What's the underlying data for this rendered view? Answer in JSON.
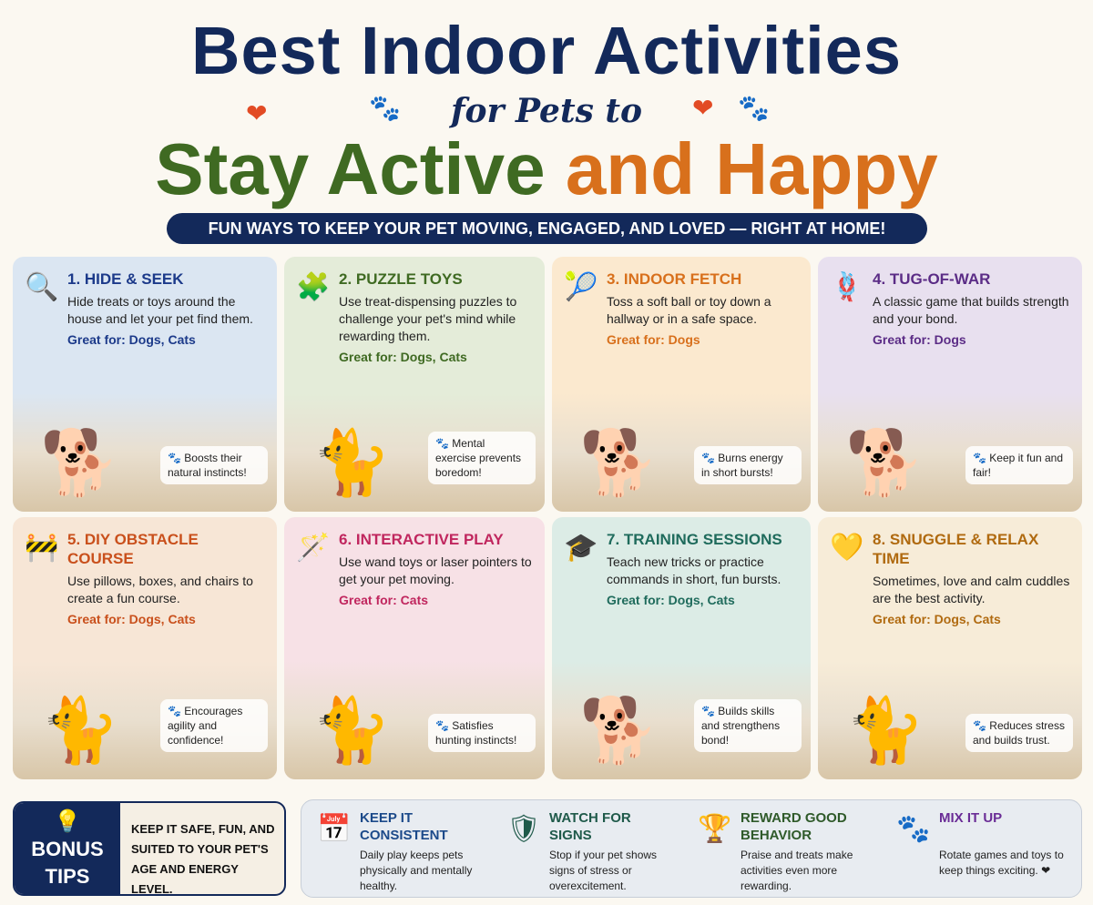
{
  "header": {
    "title_line1": "Best Indoor Activities",
    "title_line2": "for Pets to",
    "title_green": "Stay Active",
    "title_orange": "and Happy",
    "banner": "FUN WAYS TO KEEP YOUR PET MOVING, ENGAGED, AND LOVED — RIGHT AT HOME!"
  },
  "colors": {
    "navy": "#13295a",
    "green": "#3f6a22",
    "orange": "#d8701c"
  },
  "cards": [
    {
      "title": "1. HIDE & SEEK",
      "icon": "magnifier-icon",
      "glyph": "🔍",
      "desc": "Hide treats or toys around the house and let your pet find them.",
      "great_for": "Great for: Dogs, Cats",
      "callout": "🐾 Boosts their natural instincts!",
      "color": "#1c3a8a",
      "bg": "#dbe6f2",
      "pet": "🐕"
    },
    {
      "title": "2. PUZZLE TOYS",
      "icon": "puzzle-icon",
      "glyph": "🧩",
      "desc": "Use treat-dispensing puzzles to challenge your pet's mind while rewarding them.",
      "great_for": "Great for: Dogs, Cats",
      "callout": "🐾 Mental exercise prevents boredom!",
      "color": "#3f6a22",
      "bg": "#e4ecd9",
      "pet": "🐈"
    },
    {
      "title": "3. INDOOR FETCH",
      "icon": "ball-icon",
      "glyph": "🎾",
      "desc": "Toss a soft ball or toy down a hallway or in a safe space.",
      "great_for": "Great for: Dogs",
      "callout": "🐾 Burns energy in short bursts!",
      "color": "#d8701c",
      "bg": "#fbe9cf",
      "pet": "🐕"
    },
    {
      "title": "4. TUG-OF-WAR",
      "icon": "rope-icon",
      "glyph": "🪢",
      "desc": "A classic game that builds strength and your bond.",
      "great_for": "Great for: Dogs",
      "callout": "🐾 Keep it fun and fair!",
      "color": "#5b2c86",
      "bg": "#e8e0ef",
      "pet": "🐕"
    },
    {
      "title": "5. DIY OBSTACLE COURSE",
      "icon": "cone-icon",
      "glyph": "🚧",
      "desc": "Use pillows, boxes, and chairs to create a fun course.",
      "great_for": "Great for: Dogs, Cats",
      "callout": "🐾 Encourages agility and confidence!",
      "color": "#c9501c",
      "bg": "#f7e6d6",
      "pet": "🐈"
    },
    {
      "title": "6. INTERACTIVE PLAY",
      "icon": "wand-icon",
      "glyph": "🪄",
      "desc": "Use wand toys or laser pointers to get your pet moving.",
      "great_for": "Great for: Cats",
      "callout": "🐾 Satisfies hunting instincts!",
      "color": "#c0265e",
      "bg": "#f7e1e6",
      "pet": "🐈"
    },
    {
      "title": "7. TRAINING SESSIONS",
      "icon": "graduation-cap-icon",
      "glyph": "🎓",
      "desc": "Teach new tricks or practice commands in short, fun bursts.",
      "great_for": "Great for: Dogs, Cats",
      "callout": "🐾 Builds skills and strengthens bond!",
      "color": "#1f6b5c",
      "bg": "#dcece6",
      "pet": "🐕"
    },
    {
      "title": "8. SNUGGLE & RELAX TIME",
      "icon": "heart-icon",
      "glyph": "💛",
      "desc": "Sometimes, love and calm cuddles are the best activity.",
      "great_for": "Great for: Dogs, Cats",
      "callout": "🐾 Reduces stress and builds trust.",
      "color": "#b06a10",
      "bg": "#f7ecd8",
      "pet": "🐈"
    }
  ],
  "bonus": {
    "label_line1": "BONUS",
    "label_line2": "TIPS",
    "icon": "lightbulb-icon",
    "text": "KEEP IT SAFE, FUN, AND SUITED TO YOUR PET'S AGE AND ENERGY LEVEL."
  },
  "tips": [
    {
      "title": "KEEP IT CONSISTENT",
      "icon": "calendar-icon",
      "glyph": "📅",
      "desc": "Daily play keeps pets physically and mentally healthy.",
      "color": "#1c4a8a"
    },
    {
      "title": "WATCH FOR SIGNS",
      "icon": "shield-icon",
      "glyph": "🛡",
      "desc": "Stop if your pet shows signs of stress or overexcitement.",
      "color": "#1f5a4a"
    },
    {
      "title": "REWARD GOOD BEHAVIOR",
      "icon": "trophy-icon",
      "glyph": "🏆",
      "desc": "Praise and treats make activities even more rewarding.",
      "color": "#2f5a2a"
    },
    {
      "title": "MIX IT UP",
      "icon": "paw-icon",
      "glyph": "🐾",
      "desc": "Rotate games and toys to keep things exciting. ❤",
      "color": "#6a2c96"
    }
  ]
}
